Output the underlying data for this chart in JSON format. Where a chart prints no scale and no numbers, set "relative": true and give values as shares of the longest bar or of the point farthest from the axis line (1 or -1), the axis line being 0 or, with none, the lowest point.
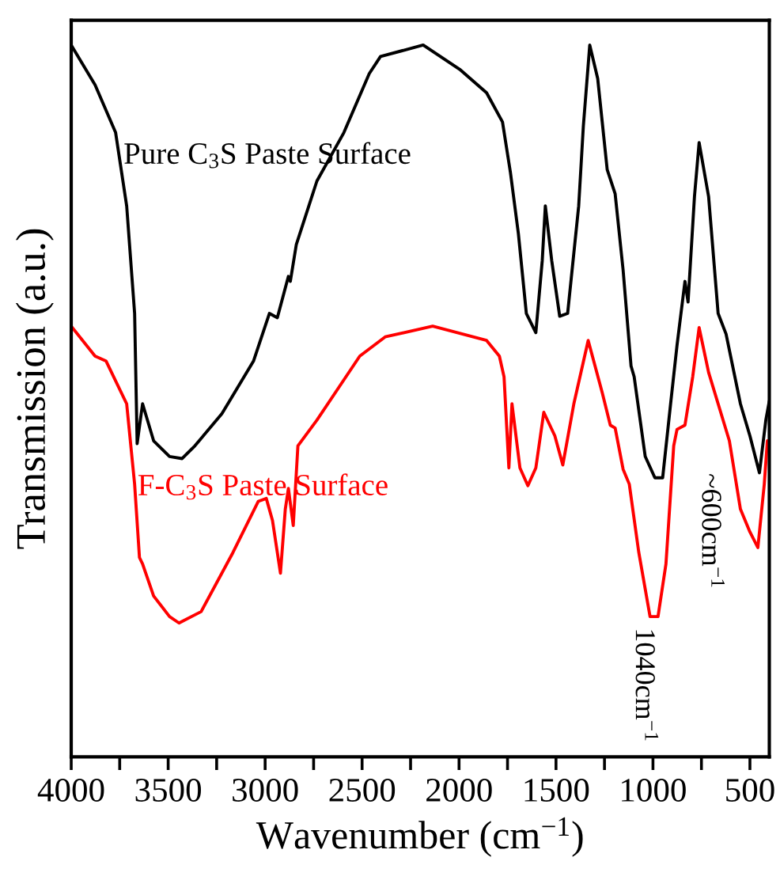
{
  "chart_data": {
    "type": "line",
    "relative": true,
    "xlabel": "Wavenumber (cm$^{−1}$)",
    "ylabel": "Transmission (a.u.)",
    "xlim": [
      4000,
      400
    ],
    "xticks": [
      4000,
      {
        "value": 3750,
        "label": null
      },
      3500,
      {
        "value": 3250,
        "label": null
      },
      3000,
      {
        "value": 2750,
        "label": null
      },
      2500,
      {
        "value": 2250,
        "label": null
      },
      2000,
      {
        "value": 1750,
        "label": null
      },
      1500,
      {
        "value": 1250,
        "label": null
      },
      1000,
      {
        "value": 750,
        "label": null
      },
      500
    ],
    "tick_labels": "x",
    "grid": false,
    "legend": false,
    "line_style": "solid",
    "marker": "none",
    "annotations": [
      "1040cm$^{−1}$",
      "~600cm$^{−1}$"
    ],
    "series": [
      {
        "name": "Pure C$_{3}$S Paste Surface",
        "color": "#000000",
        "x": [
          4000,
          3877,
          3771,
          3714,
          3673,
          3660,
          3632,
          3575,
          3493,
          3428,
          3362,
          3223,
          3060,
          2978,
          2937,
          2880,
          2870,
          2839,
          2733,
          2594,
          2463,
          2405,
          2185,
          1997,
          1858,
          1776,
          1735,
          1694,
          1653,
          1604,
          1571,
          1555,
          1522,
          1481,
          1440,
          1383,
          1359,
          1326,
          1285,
          1236,
          1195,
          1154,
          1113,
          1097,
          1040,
          990,
          950,
          909,
          876,
          835,
          819,
          786,
          762,
          713,
          664,
          623,
          549,
          500,
          451,
          418,
          400
        ],
        "values": [
          1.0,
          0.944,
          0.877,
          0.774,
          0.623,
          0.44,
          0.496,
          0.444,
          0.422,
          0.419,
          0.437,
          0.482,
          0.556,
          0.623,
          0.617,
          0.675,
          0.668,
          0.72,
          0.809,
          0.877,
          0.96,
          0.984,
          1.0,
          0.966,
          0.933,
          0.892,
          0.821,
          0.735,
          0.623,
          0.596,
          0.697,
          0.774,
          0.697,
          0.619,
          0.623,
          0.774,
          0.886,
          1.0,
          0.953,
          0.825,
          0.791,
          0.684,
          0.549,
          0.534,
          0.422,
          0.392,
          0.392,
          0.496,
          0.578,
          0.668,
          0.639,
          0.787,
          0.863,
          0.787,
          0.623,
          0.594,
          0.496,
          0.451,
          0.399,
          0.473,
          0.5
        ]
      },
      {
        "name": "F-C$_{3}$S Paste Surface",
        "color": "#ff0000",
        "x": [
          4000,
          3877,
          3820,
          3714,
          3673,
          3648,
          3632,
          3575,
          3493,
          3444,
          3330,
          3166,
          3035,
          2994,
          2962,
          2921,
          2896,
          2880,
          2855,
          2831,
          2733,
          2512,
          2381,
          2136,
          1858,
          1792,
          1768,
          1743,
          1727,
          1686,
          1645,
          1604,
          1563,
          1506,
          1465,
          1408,
          1334,
          1261,
          1220,
          1195,
          1154,
          1122,
          1073,
          1015,
          974,
          933,
          893,
          876,
          835,
          795,
          762,
          713,
          606,
          549,
          500,
          459,
          426,
          410
        ],
        "values": [
          0.605,
          0.563,
          0.556,
          0.496,
          0.383,
          0.28,
          0.271,
          0.226,
          0.197,
          0.188,
          0.204,
          0.287,
          0.359,
          0.363,
          0.332,
          0.258,
          0.348,
          0.377,
          0.325,
          0.437,
          0.473,
          0.563,
          0.59,
          0.605,
          0.585,
          0.563,
          0.534,
          0.406,
          0.496,
          0.406,
          0.381,
          0.406,
          0.484,
          0.451,
          0.41,
          0.496,
          0.585,
          0.511,
          0.466,
          0.462,
          0.404,
          0.383,
          0.287,
          0.197,
          0.197,
          0.271,
          0.437,
          0.46,
          0.466,
          0.534,
          0.603,
          0.54,
          0.444,
          0.348,
          0.316,
          0.294,
          0.383,
          0.444
        ]
      }
    ]
  }
}
